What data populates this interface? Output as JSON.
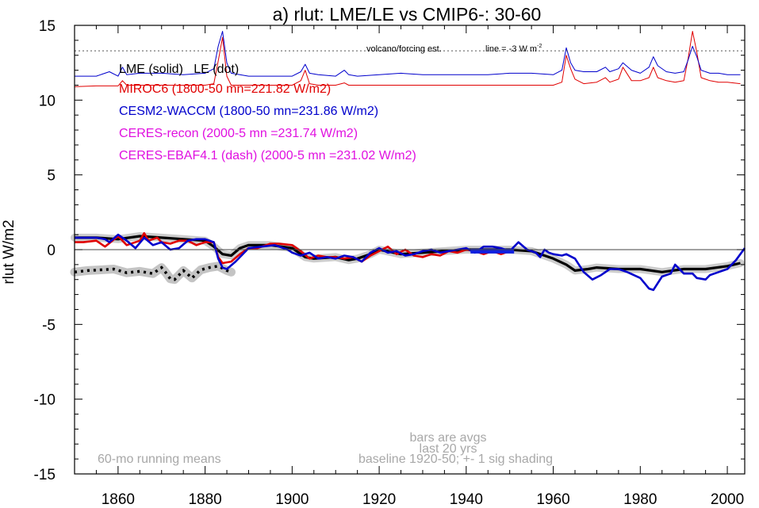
{
  "chart_data": {
    "type": "line",
    "title": "a) rlut: LME/LE vs CMIP6-: 30-60",
    "xlabel": "",
    "ylabel": "rlut W/m2",
    "xlim": [
      1850,
      2004
    ],
    "ylim": [
      -15,
      15
    ],
    "x_ticks": [
      1860,
      1880,
      1900,
      1920,
      1940,
      1960,
      1980,
      2000
    ],
    "y_ticks": [
      -15,
      -10,
      -5,
      0,
      5,
      10,
      15
    ],
    "x_tick_labels": [
      "1860",
      "1880",
      "1900",
      "1920",
      "1940",
      "1960",
      "1980",
      "2000"
    ],
    "y_tick_labels": [
      "-15",
      "-10",
      "-5",
      "0",
      "5",
      "10",
      "15"
    ],
    "grid": false,
    "zero_line": 0,
    "forcing_line": {
      "y": 13.3,
      "label_left": "volcano/forcing est.",
      "label_right": "line = -3 W m",
      "label_right_sup": "-2"
    },
    "legend": [
      {
        "text": "LME (solid)   LE (dot)",
        "color": "#000000"
      },
      {
        "text": "MIROC6 (1800-50 mn=221.82 W/m2)",
        "color": "#e00000"
      },
      {
        "text": "CESM2-WACCM (1800-50 mn=231.86 W/m2)",
        "color": "#0000cc"
      },
      {
        "text": "CERES-recon (2000-5 mn =231.74 W/m2)",
        "color": "#e010e0"
      },
      {
        "text": "CERES-EBAF4.1 (dash) (2000-5 mn =231.02 W/m2)",
        "color": "#e010e0"
      }
    ],
    "annotations": {
      "running_means": "60-mo running means",
      "bars_line1": "bars are avgs",
      "bars_line2": "last 20 yrs",
      "baseline": "baseline 1920-50; +- 1 sig shading"
    },
    "series": [
      {
        "name": "MIROC6 forcing",
        "color": "#e00000",
        "style": "thin",
        "x": [
          1850,
          1855,
          1860,
          1861,
          1862,
          1865,
          1870,
          1875,
          1880,
          1882,
          1883,
          1884,
          1885,
          1886,
          1888,
          1890,
          1895,
          1900,
          1902,
          1903,
          1904,
          1906,
          1910,
          1912,
          1913,
          1915,
          1920,
          1925,
          1930,
          1935,
          1940,
          1945,
          1950,
          1955,
          1960,
          1962,
          1963,
          1964,
          1965,
          1967,
          1970,
          1972,
          1973,
          1975,
          1976,
          1978,
          1980,
          1982,
          1983,
          1984,
          1986,
          1988,
          1990,
          1991,
          1992,
          1993,
          1994,
          1996,
          1998,
          2000,
          2003
        ],
        "y": [
          10.9,
          10.95,
          10.95,
          11.3,
          11.0,
          11.0,
          11.0,
          11.0,
          11.0,
          11.1,
          12.6,
          14.2,
          11.6,
          11.0,
          11.0,
          11.0,
          11.0,
          11.0,
          11.3,
          12.0,
          11.1,
          11.0,
          11.0,
          11.15,
          11.0,
          11.0,
          11.0,
          11.0,
          11.0,
          11.0,
          11.0,
          11.0,
          11.0,
          11.0,
          11.0,
          11.2,
          13.0,
          12.1,
          11.4,
          11.1,
          11.2,
          11.5,
          11.2,
          11.4,
          12.2,
          11.3,
          11.3,
          11.5,
          12.2,
          11.5,
          11.3,
          11.2,
          11.3,
          12.8,
          14.6,
          13.2,
          11.5,
          11.3,
          11.2,
          11.2,
          11.1
        ]
      },
      {
        "name": "CESM2-WACCM forcing",
        "color": "#0000cc",
        "style": "thin",
        "x": [
          1850,
          1855,
          1858,
          1860,
          1861,
          1862,
          1865,
          1870,
          1875,
          1880,
          1882,
          1883,
          1884,
          1885,
          1886,
          1888,
          1890,
          1895,
          1900,
          1902,
          1903,
          1904,
          1906,
          1910,
          1912,
          1913,
          1915,
          1920,
          1925,
          1930,
          1935,
          1940,
          1945,
          1950,
          1955,
          1960,
          1962,
          1963,
          1964,
          1965,
          1967,
          1970,
          1972,
          1973,
          1975,
          1976,
          1978,
          1980,
          1982,
          1983,
          1984,
          1986,
          1988,
          1990,
          1991,
          1992,
          1993,
          1994,
          1996,
          1998,
          2000,
          2003
        ],
        "y": [
          11.6,
          11.6,
          11.9,
          11.6,
          12.2,
          11.7,
          11.8,
          11.8,
          11.7,
          11.8,
          12.1,
          13.6,
          14.6,
          12.5,
          11.8,
          11.7,
          11.6,
          11.6,
          11.6,
          11.9,
          12.4,
          11.8,
          11.7,
          11.6,
          12.0,
          11.7,
          11.6,
          11.7,
          11.8,
          11.7,
          11.7,
          11.7,
          11.7,
          11.8,
          11.8,
          11.7,
          12.0,
          13.5,
          12.5,
          12.0,
          11.9,
          11.9,
          12.2,
          11.9,
          12.1,
          12.5,
          12.0,
          11.8,
          12.2,
          12.9,
          12.3,
          11.9,
          11.8,
          11.9,
          12.7,
          13.6,
          12.9,
          12.0,
          11.8,
          11.8,
          11.7,
          11.7
        ]
      },
      {
        "name": "LE (dot)",
        "color": "#000000",
        "style": "dotted-shaded",
        "x": [
          1850,
          1853,
          1856,
          1859,
          1862,
          1865,
          1868,
          1870,
          1871,
          1872,
          1873,
          1875,
          1877,
          1879,
          1881,
          1883,
          1885,
          1886
        ],
        "y": [
          -1.5,
          -1.4,
          -1.35,
          -1.3,
          -1.55,
          -1.45,
          -1.6,
          -1.2,
          -1.55,
          -1.95,
          -2.0,
          -1.4,
          -1.9,
          -1.35,
          -1.2,
          -1.1,
          -1.4,
          -1.5
        ]
      },
      {
        "name": "LME (solid)",
        "color": "#000000",
        "style": "thick-shaded",
        "x": [
          1850,
          1855,
          1860,
          1865,
          1870,
          1875,
          1880,
          1882,
          1884,
          1886,
          1888,
          1890,
          1895,
          1900,
          1903,
          1905,
          1910,
          1913,
          1915,
          1918,
          1920,
          1925,
          1930,
          1935,
          1940,
          1945,
          1950,
          1955,
          1958,
          1960,
          1963,
          1965,
          1968,
          1970,
          1975,
          1980,
          1985,
          1990,
          1995,
          2000,
          2003
        ],
        "y": [
          0.8,
          0.8,
          0.7,
          0.9,
          0.8,
          0.7,
          0.6,
          0.2,
          -0.3,
          -0.4,
          0.1,
          0.3,
          0.3,
          0.1,
          -0.5,
          -0.6,
          -0.5,
          -0.7,
          -0.6,
          -0.3,
          0.0,
          -0.3,
          -0.2,
          -0.1,
          0.0,
          0.0,
          0.0,
          -0.1,
          -0.4,
          -0.6,
          -1.0,
          -1.4,
          -1.3,
          -1.2,
          -1.3,
          -1.3,
          -1.5,
          -1.3,
          -1.3,
          -1.1,
          -0.9
        ]
      },
      {
        "name": "MIROC6",
        "color": "#e00000",
        "style": "thick",
        "x": [
          1850,
          1852,
          1855,
          1857,
          1860,
          1862,
          1865,
          1866,
          1867,
          1869,
          1870,
          1872,
          1874,
          1876,
          1878,
          1880,
          1882,
          1883,
          1884,
          1886,
          1888,
          1890,
          1892,
          1895,
          1897,
          1900,
          1902,
          1904,
          1906,
          1908,
          1910,
          1912,
          1914,
          1916,
          1918,
          1920,
          1922,
          1924,
          1926,
          1928,
          1930,
          1932,
          1934,
          1936,
          1938,
          1940,
          1942,
          1944,
          1946,
          1948,
          1950
        ],
        "y": [
          0.5,
          0.5,
          0.6,
          0.2,
          0.9,
          0.3,
          0.6,
          1.1,
          0.6,
          0.8,
          0.5,
          0.4,
          0.6,
          0.6,
          0.3,
          0.5,
          0.5,
          -0.5,
          -0.9,
          -0.8,
          -0.3,
          0.1,
          0.1,
          0.4,
          0.4,
          0.3,
          -0.1,
          -0.6,
          -0.4,
          -0.5,
          -0.5,
          -0.6,
          -0.5,
          -0.8,
          -0.4,
          -0.1,
          0.2,
          -0.3,
          0.0,
          -0.4,
          -0.5,
          -0.3,
          -0.4,
          -0.1,
          -0.2,
          0.0,
          -0.1,
          -0.3,
          -0.1,
          -0.3,
          -0.1
        ]
      },
      {
        "name": "CESM2-WACCM",
        "color": "#0000cc",
        "style": "thick",
        "x": [
          1850,
          1853,
          1855,
          1857,
          1858,
          1860,
          1862,
          1864,
          1866,
          1868,
          1870,
          1872,
          1874,
          1876,
          1878,
          1880,
          1882,
          1883,
          1884,
          1885,
          1887,
          1890,
          1893,
          1896,
          1899,
          1900,
          1902,
          1904,
          1906,
          1908,
          1910,
          1912,
          1914,
          1916,
          1918,
          1920,
          1922,
          1924,
          1926,
          1928,
          1930,
          1932,
          1934,
          1936,
          1938,
          1940,
          1942,
          1944,
          1946,
          1948,
          1950,
          1952,
          1954,
          1956,
          1957,
          1958,
          1959,
          1960,
          1962,
          1963,
          1965,
          1967,
          1969,
          1971,
          1973,
          1975,
          1977,
          1980,
          1982,
          1983,
          1985,
          1987,
          1988,
          1990,
          1992,
          1993,
          1995,
          1996,
          1998,
          2000,
          2002,
          2004
        ],
        "y": [
          0.8,
          0.8,
          0.8,
          0.7,
          0.5,
          1.0,
          0.6,
          0.1,
          0.8,
          0.3,
          0.5,
          0.0,
          0.1,
          0.6,
          0.7,
          0.7,
          0.5,
          -0.6,
          -1.2,
          -1.3,
          -0.8,
          0.1,
          0.2,
          0.3,
          0.0,
          -0.2,
          -0.4,
          -0.2,
          -0.6,
          -0.5,
          -0.6,
          -0.4,
          -0.5,
          -0.8,
          -0.2,
          0.1,
          -0.2,
          -0.1,
          -0.4,
          -0.3,
          -0.1,
          0.0,
          -0.2,
          -0.1,
          0.0,
          0.1,
          -0.2,
          0.2,
          0.2,
          0.1,
          -0.1,
          0.5,
          0.0,
          -0.2,
          -0.5,
          0.0,
          -0.2,
          -0.3,
          -0.4,
          -0.3,
          -0.6,
          -1.5,
          -2.0,
          -1.7,
          -1.3,
          -1.3,
          -1.5,
          -1.9,
          -2.6,
          -2.7,
          -1.8,
          -1.6,
          -1.0,
          -1.6,
          -1.6,
          -1.9,
          -2.0,
          -1.7,
          -1.5,
          -1.3,
          -0.7,
          0.1
        ]
      },
      {
        "name": "bar",
        "color": "#1020e0",
        "style": "bar",
        "x": [
          1941,
          1951
        ],
        "y": [
          -0.1,
          -0.1
        ]
      }
    ]
  }
}
